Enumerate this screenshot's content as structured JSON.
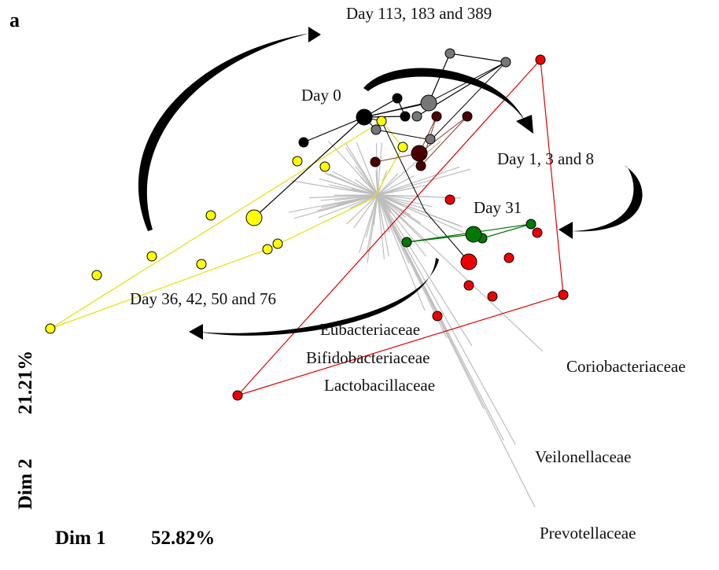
{
  "panel_label": "a",
  "group_labels": [
    "Day 113, 183 and 389",
    "Day 0",
    "Day 1, 3 and 8",
    "Day 31",
    "Day 36, 42, 50 and 76"
  ],
  "taxa_labels": [
    "Eubacteriaceae",
    "Bifidobacteriaceae",
    "Lactobacillaceae",
    "Coriobacteriaceae",
    "Veilonellaceae",
    "Prevotellaceae"
  ],
  "axes": {
    "x": {
      "name": "Dim 1",
      "percent": "52.82%"
    },
    "y": {
      "name": "Dim 2",
      "percent": "21.21%"
    }
  }
}
